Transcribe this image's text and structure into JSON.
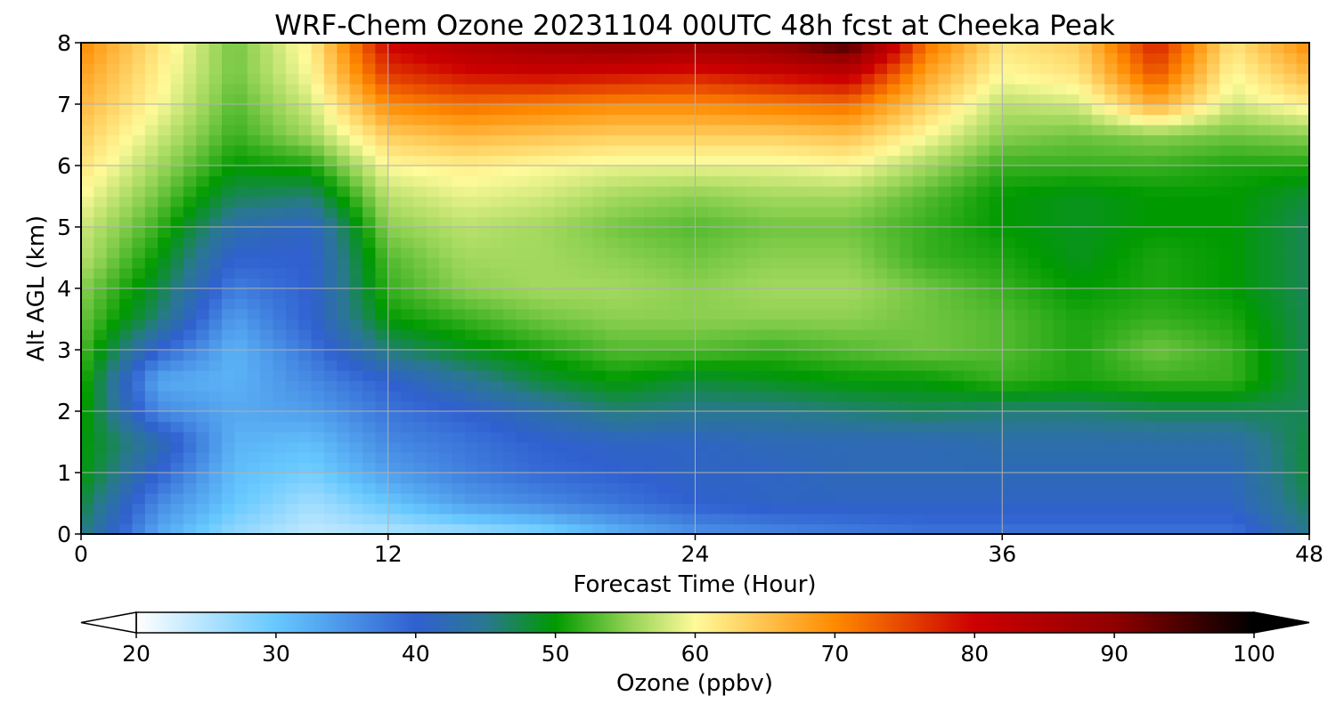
{
  "chart_data": {
    "type": "heatmap",
    "title": "WRF-Chem Ozone  20231104 00UTC 48h fcst at Cheeka Peak",
    "xlabel": "Forecast Time (Hour)",
    "ylabel": "Alt AGL (km)",
    "xlim": [
      0,
      48
    ],
    "ylim": [
      0,
      8
    ],
    "xticks": [
      0,
      12,
      24,
      36,
      48
    ],
    "yticks": [
      0,
      1,
      2,
      3,
      4,
      5,
      6,
      7,
      8
    ],
    "grid": true,
    "colorbar": {
      "label": "Ozone  (ppbv)",
      "orientation": "horizontal",
      "extend": "both",
      "vmin": 20,
      "vmax": 100,
      "ticks": [
        20,
        30,
        40,
        50,
        60,
        70,
        80,
        90,
        100
      ],
      "colormap": [
        {
          "v": 20,
          "c": "#ffffff"
        },
        {
          "v": 30,
          "c": "#66c8ff"
        },
        {
          "v": 40,
          "c": "#3060d0"
        },
        {
          "v": 45,
          "c": "#2a7890"
        },
        {
          "v": 50,
          "c": "#009a00"
        },
        {
          "v": 55,
          "c": "#8cd050"
        },
        {
          "v": 60,
          "c": "#fffa9a"
        },
        {
          "v": 70,
          "c": "#ff8a00"
        },
        {
          "v": 80,
          "c": "#cc0000"
        },
        {
          "v": 90,
          "c": "#900000"
        },
        {
          "v": 100,
          "c": "#000000"
        }
      ]
    },
    "x_hours": [
      0,
      3,
      6,
      9,
      12,
      15,
      18,
      21,
      24,
      27,
      30,
      33,
      36,
      39,
      42,
      45,
      48
    ],
    "y_km": [
      0,
      0.5,
      1,
      1.5,
      2,
      2.5,
      3,
      3.5,
      4,
      4.5,
      5,
      5.5,
      6,
      6.5,
      7,
      7.5,
      8
    ],
    "z_ppbv": [
      [
        46,
        33,
        27,
        24,
        25,
        26,
        28,
        32,
        35,
        36,
        37,
        38,
        38,
        38,
        38,
        38,
        45
      ],
      [
        48,
        36,
        30,
        26,
        30,
        34,
        36,
        38,
        40,
        41,
        41,
        41,
        41,
        41,
        41,
        41,
        47
      ],
      [
        50,
        40,
        31,
        29,
        34,
        37,
        39,
        40,
        41,
        41,
        42,
        42,
        42,
        42,
        42,
        42,
        48
      ],
      [
        50,
        43,
        32,
        31,
        36,
        38,
        40,
        41,
        41,
        42,
        42,
        42,
        43,
        43,
        43,
        43,
        48
      ],
      [
        51,
        36,
        33,
        34,
        38,
        40,
        43,
        46,
        45,
        45,
        46,
        47,
        46,
        46,
        47,
        47,
        47
      ],
      [
        52,
        33,
        32,
        36,
        40,
        44,
        48,
        50,
        48,
        49,
        50,
        50,
        52,
        51,
        52,
        52,
        47
      ],
      [
        53,
        40,
        32,
        38,
        46,
        49,
        51,
        53,
        53,
        52,
        53,
        54,
        53,
        51,
        54,
        52,
        47
      ],
      [
        54,
        46,
        34,
        40,
        50,
        52,
        54,
        55,
        55,
        55,
        55,
        54,
        53,
        51,
        52,
        51,
        47
      ],
      [
        55,
        48,
        37,
        40,
        52,
        55,
        56,
        56,
        55,
        56,
        56,
        54,
        52,
        50,
        51,
        50,
        47
      ],
      [
        57,
        50,
        40,
        40,
        53,
        56,
        56,
        55,
        54,
        55,
        55,
        52,
        51,
        49,
        51,
        50,
        47
      ],
      [
        58,
        52,
        43,
        41,
        55,
        57,
        56,
        54,
        53,
        54,
        54,
        52,
        50,
        49,
        50,
        50,
        47
      ],
      [
        60,
        54,
        47,
        46,
        57,
        59,
        58,
        56,
        55,
        56,
        56,
        53,
        50,
        49,
        50,
        50,
        48
      ],
      [
        62,
        56,
        50,
        51,
        60,
        61,
        60,
        59,
        59,
        59,
        60,
        56,
        52,
        52,
        52,
        51,
        51
      ],
      [
        64,
        58,
        52,
        56,
        64,
        66,
        65,
        64,
        64,
        64,
        65,
        60,
        55,
        54,
        55,
        54,
        55
      ],
      [
        66,
        60,
        53,
        58,
        70,
        72,
        71,
        70,
        70,
        71,
        72,
        64,
        57,
        58,
        67,
        58,
        61
      ],
      [
        68,
        61,
        54,
        60,
        76,
        79,
        80,
        79,
        78,
        80,
        82,
        68,
        60,
        62,
        74,
        60,
        66
      ],
      [
        70,
        62,
        54,
        61,
        80,
        85,
        88,
        90,
        88,
        90,
        96,
        72,
        62,
        64,
        78,
        62,
        70
      ]
    ]
  }
}
